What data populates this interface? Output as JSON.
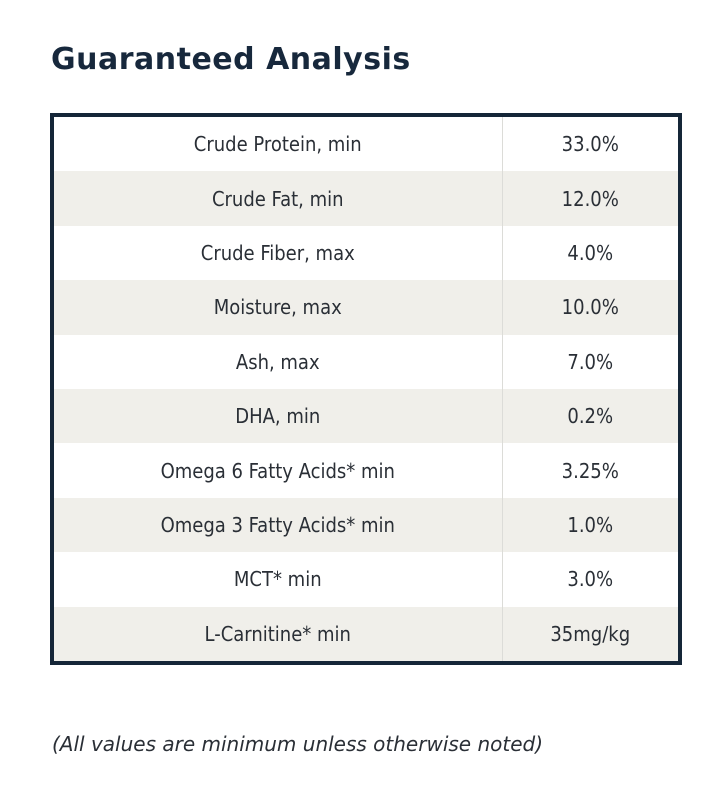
{
  "title": "Guaranteed Analysis",
  "rows": [
    {
      "label": "Crude Protein, min",
      "value": "33.0%"
    },
    {
      "label": "Crude Fat, min",
      "value": "12.0%"
    },
    {
      "label": "Crude Fiber, max",
      "value": "4.0%"
    },
    {
      "label": "Moisture, max",
      "value": "10.0%"
    },
    {
      "label": "Ash, max",
      "value": "7.0%"
    },
    {
      "label": "DHA, min",
      "value": "0.2%"
    },
    {
      "label": "Omega 6 Fatty Acids* min",
      "value": "3.25%"
    },
    {
      "label": "Omega 3 Fatty Acids* min",
      "value": "1.0%"
    },
    {
      "label": "MCT* min",
      "value": "3.0%"
    },
    {
      "label": "L-Carnitine* min",
      "value": "35mg/kg"
    }
  ],
  "footnote": "(All values are minimum unless otherwise noted)",
  "colors": {
    "title": "#17283c",
    "border": "#152638",
    "stripe": "#f0efea"
  }
}
